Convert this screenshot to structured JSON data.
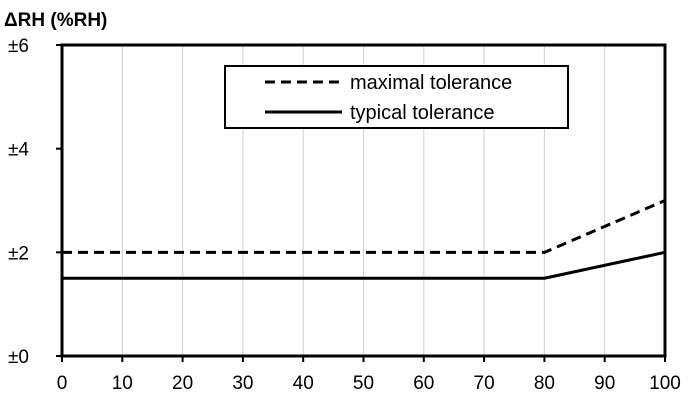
{
  "chart_data": {
    "type": "line",
    "ylabel": "ΔRH (%RH)",
    "xlabel": "",
    "xlim": [
      0,
      100
    ],
    "ylim": [
      0,
      6
    ],
    "x_ticks": [
      "0",
      "10",
      "20",
      "30",
      "40",
      "50",
      "60",
      "70",
      "80",
      "90",
      "100"
    ],
    "y_ticks": [
      "±0",
      "±2",
      "±4",
      "±6"
    ],
    "grid": {
      "vertical": true,
      "horizontal": false
    },
    "legend_position": "top-center",
    "series": [
      {
        "name": "maximal tolerance",
        "style": "dashed",
        "color": "#000000",
        "points": [
          [
            0,
            2
          ],
          [
            80,
            2
          ],
          [
            100,
            3
          ]
        ]
      },
      {
        "name": "typical tolerance",
        "style": "solid",
        "color": "#000000",
        "points": [
          [
            0,
            1.5
          ],
          [
            80,
            1.5
          ],
          [
            100,
            2
          ]
        ]
      }
    ]
  }
}
